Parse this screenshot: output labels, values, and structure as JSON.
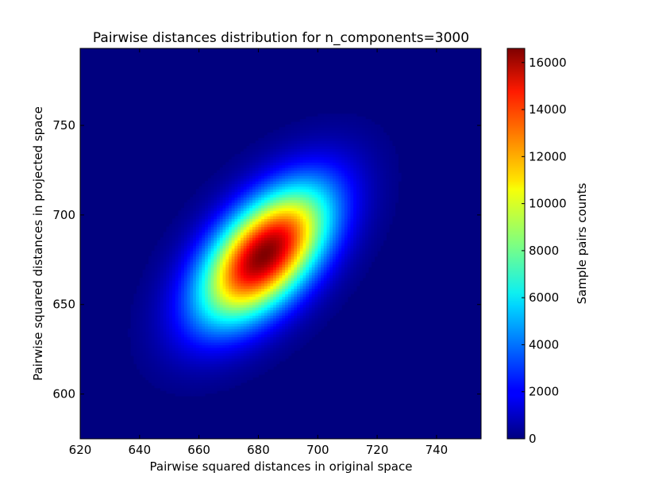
{
  "chart_data": {
    "type": "heatmap",
    "title": "Pairwise distances distribution for n_components=3000",
    "xlabel": "Pairwise squared distances in original space",
    "ylabel": "Pairwise squared distances in projected space",
    "xlim": [
      620,
      755
    ],
    "ylim": [
      575,
      793
    ],
    "x_ticks": [
      620,
      640,
      660,
      680,
      700,
      720,
      740
    ],
    "y_ticks": [
      600,
      650,
      700,
      750
    ],
    "grid": false,
    "colormap": "jet",
    "colorbar": {
      "label": "Sample pairs counts",
      "min": 0,
      "max": 16600,
      "ticks": [
        0,
        2000,
        4000,
        6000,
        8000,
        10000,
        12000,
        14000,
        16000
      ]
    },
    "distribution": {
      "peak_count": 16600,
      "center_x": 682,
      "center_y": 678,
      "sd_x": 15,
      "sd_y": 26,
      "correlation": 0.55
    }
  }
}
